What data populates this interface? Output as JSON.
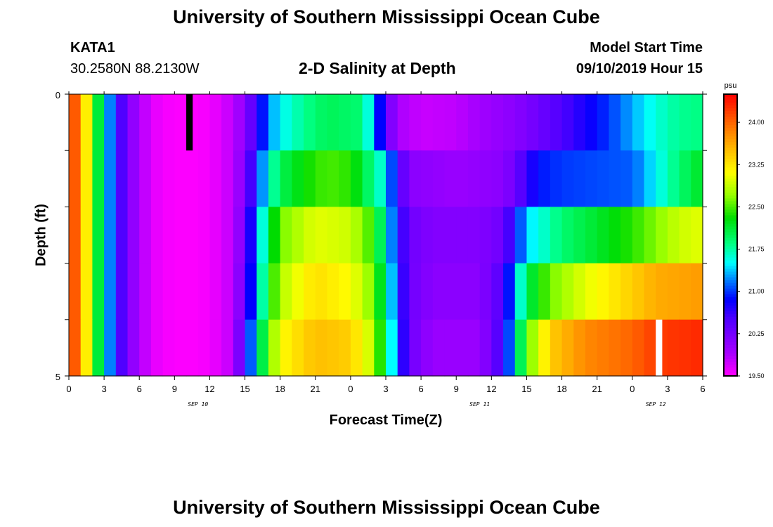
{
  "header": {
    "title_top": "University of Southern Mississippi Ocean Cube",
    "title_bottom": "University of Southern Mississippi Ocean Cube",
    "station_id": "KATA1",
    "station_coords": "30.2580N 88.2130W",
    "plot_title": "2-D Salinity at Depth",
    "model_start_label": "Model Start Time",
    "model_start_value": "09/10/2019 Hour 15"
  },
  "chart_data": {
    "type": "heatmap",
    "title": "2-D Salinity at Depth",
    "xlabel": "Forecast Time(Z)",
    "ylabel": "Depth (ft)",
    "x_tick_labels": [
      "0",
      "3",
      "6",
      "9",
      "12",
      "15",
      "18",
      "21",
      "0",
      "3",
      "6",
      "9",
      "12",
      "15",
      "18",
      "21",
      "0",
      "3",
      "6"
    ],
    "x_date_labels": [
      {
        "label": "SEP 10",
        "hour_index": 11
      },
      {
        "label": "SEP 11",
        "hour_index": 35
      },
      {
        "label": "SEP 12",
        "hour_index": 50
      }
    ],
    "y_tick_labels": [
      "0",
      "5"
    ],
    "ylim": [
      0,
      5
    ],
    "hours": 54,
    "layer_count": 5,
    "colorbar": {
      "unit": "psu",
      "min": 19.5,
      "max": 24.5,
      "tick_labels": [
        "24.00",
        "23.25",
        "22.50",
        "21.75",
        "21.00",
        "20.25",
        "19.50"
      ],
      "tick_values": [
        24.0,
        23.25,
        22.5,
        21.75,
        21.0,
        20.25,
        19.5
      ]
    },
    "salinity_profiles": {
      "layer_1": [
        [
          0,
          24.3
        ],
        [
          1,
          23.8
        ],
        [
          2,
          22.6
        ],
        [
          3,
          21.6
        ],
        [
          4,
          20.8
        ],
        [
          5,
          20.2
        ],
        [
          6,
          19.9
        ],
        [
          7,
          19.65
        ],
        [
          8,
          19.55
        ],
        [
          10,
          19.5
        ],
        [
          12,
          19.55
        ],
        [
          14,
          19.8
        ],
        [
          15,
          20.1
        ],
        [
          16,
          20.6
        ],
        [
          17,
          21.2
        ],
        [
          18,
          21.5
        ],
        [
          20,
          21.8
        ],
        [
          22,
          22.0
        ],
        [
          25,
          21.9
        ],
        [
          26,
          21.3
        ],
        [
          27,
          20.4
        ],
        [
          28,
          19.9
        ],
        [
          30,
          19.75
        ],
        [
          33,
          19.8
        ],
        [
          36,
          20.0
        ],
        [
          38,
          20.1
        ],
        [
          40,
          20.3
        ],
        [
          42,
          20.5
        ],
        [
          46,
          21.0
        ],
        [
          48,
          21.3
        ],
        [
          50,
          21.6
        ],
        [
          52,
          21.8
        ],
        [
          54,
          21.85
        ]
      ],
      "layer_2": [
        [
          0,
          24.3
        ],
        [
          1,
          23.8
        ],
        [
          2,
          22.6
        ],
        [
          3,
          21.6
        ],
        [
          4,
          20.8
        ],
        [
          5,
          20.2
        ],
        [
          6,
          19.9
        ],
        [
          7,
          19.65
        ],
        [
          8,
          19.55
        ],
        [
          10,
          19.5
        ],
        [
          12,
          19.55
        ],
        [
          14,
          19.8
        ],
        [
          15,
          20.2
        ],
        [
          16,
          20.9
        ],
        [
          17,
          21.6
        ],
        [
          18,
          22.0
        ],
        [
          20,
          22.3
        ],
        [
          22,
          22.5
        ],
        [
          24,
          22.4
        ],
        [
          27,
          21.5
        ],
        [
          28,
          20.6
        ],
        [
          29,
          20.1
        ],
        [
          33,
          20.0
        ],
        [
          37,
          20.1
        ],
        [
          38,
          20.3
        ],
        [
          39,
          20.6
        ],
        [
          40,
          20.9
        ],
        [
          42,
          21.0
        ],
        [
          48,
          21.1
        ],
        [
          50,
          21.5
        ],
        [
          52,
          21.9
        ],
        [
          54,
          22.2
        ]
      ],
      "layer_3": [
        [
          0,
          24.3
        ],
        [
          1,
          23.8
        ],
        [
          2,
          22.6
        ],
        [
          3,
          21.6
        ],
        [
          4,
          20.8
        ],
        [
          5,
          20.2
        ],
        [
          6,
          19.9
        ],
        [
          7,
          19.65
        ],
        [
          8,
          19.55
        ],
        [
          10,
          19.5
        ],
        [
          12,
          19.55
        ],
        [
          14,
          19.8
        ],
        [
          15,
          20.3
        ],
        [
          16,
          21.2
        ],
        [
          17,
          22.0
        ],
        [
          18,
          22.6
        ],
        [
          21,
          23.0
        ],
        [
          24,
          22.9
        ],
        [
          26,
          22.4
        ],
        [
          27,
          21.6
        ],
        [
          28,
          20.8
        ],
        [
          29,
          20.3
        ],
        [
          31,
          20.15
        ],
        [
          35,
          20.15
        ],
        [
          37,
          20.3
        ],
        [
          38,
          20.8
        ],
        [
          39,
          21.4
        ],
        [
          42,
          21.9
        ],
        [
          48,
          22.4
        ],
        [
          52,
          22.9
        ],
        [
          54,
          23.0
        ]
      ],
      "layer_4": [
        [
          0,
          24.3
        ],
        [
          1,
          23.8
        ],
        [
          2,
          22.6
        ],
        [
          3,
          21.6
        ],
        [
          4,
          20.8
        ],
        [
          5,
          20.2
        ],
        [
          6,
          19.9
        ],
        [
          7,
          19.65
        ],
        [
          8,
          19.55
        ],
        [
          10,
          19.5
        ],
        [
          12,
          19.55
        ],
        [
          14,
          19.8
        ],
        [
          15,
          20.4
        ],
        [
          16,
          21.3
        ],
        [
          17,
          22.2
        ],
        [
          18,
          22.8
        ],
        [
          21,
          23.3
        ],
        [
          24,
          23.1
        ],
        [
          26,
          22.6
        ],
        [
          27,
          21.8
        ],
        [
          28,
          20.9
        ],
        [
          29,
          20.3
        ],
        [
          31,
          20.1
        ],
        [
          35,
          20.1
        ],
        [
          37,
          20.5
        ],
        [
          38,
          21.3
        ],
        [
          39,
          22.0
        ],
        [
          41,
          22.6
        ],
        [
          44,
          23.0
        ],
        [
          48,
          23.4
        ],
        [
          50,
          23.6
        ],
        [
          54,
          23.7
        ]
      ],
      "layer_5": [
        [
          0,
          24.3
        ],
        [
          1,
          23.8
        ],
        [
          2,
          22.6
        ],
        [
          3,
          21.6
        ],
        [
          4,
          20.8
        ],
        [
          5,
          20.2
        ],
        [
          6,
          19.9
        ],
        [
          7,
          19.65
        ],
        [
          8,
          19.55
        ],
        [
          10,
          19.5
        ],
        [
          12,
          19.55
        ],
        [
          14,
          19.8
        ],
        [
          15,
          20.6
        ],
        [
          16,
          21.6
        ],
        [
          17,
          22.5
        ],
        [
          18,
          23.1
        ],
        [
          21,
          23.5
        ],
        [
          24,
          23.4
        ],
        [
          26,
          22.8
        ],
        [
          27,
          22.0
        ],
        [
          28,
          21.0
        ],
        [
          29,
          20.3
        ],
        [
          31,
          20.0
        ],
        [
          35,
          20.0
        ],
        [
          37,
          20.6
        ],
        [
          38,
          21.5
        ],
        [
          39,
          22.5
        ],
        [
          41,
          23.4
        ],
        [
          44,
          23.8
        ],
        [
          48,
          24.0
        ],
        [
          50,
          24.2
        ],
        [
          54,
          24.3
        ]
      ]
    },
    "markers": [
      {
        "color": "#000000",
        "hour": 10,
        "layer": 1
      },
      {
        "color": "#ffffff",
        "hour": 50,
        "layer": 5
      }
    ]
  }
}
